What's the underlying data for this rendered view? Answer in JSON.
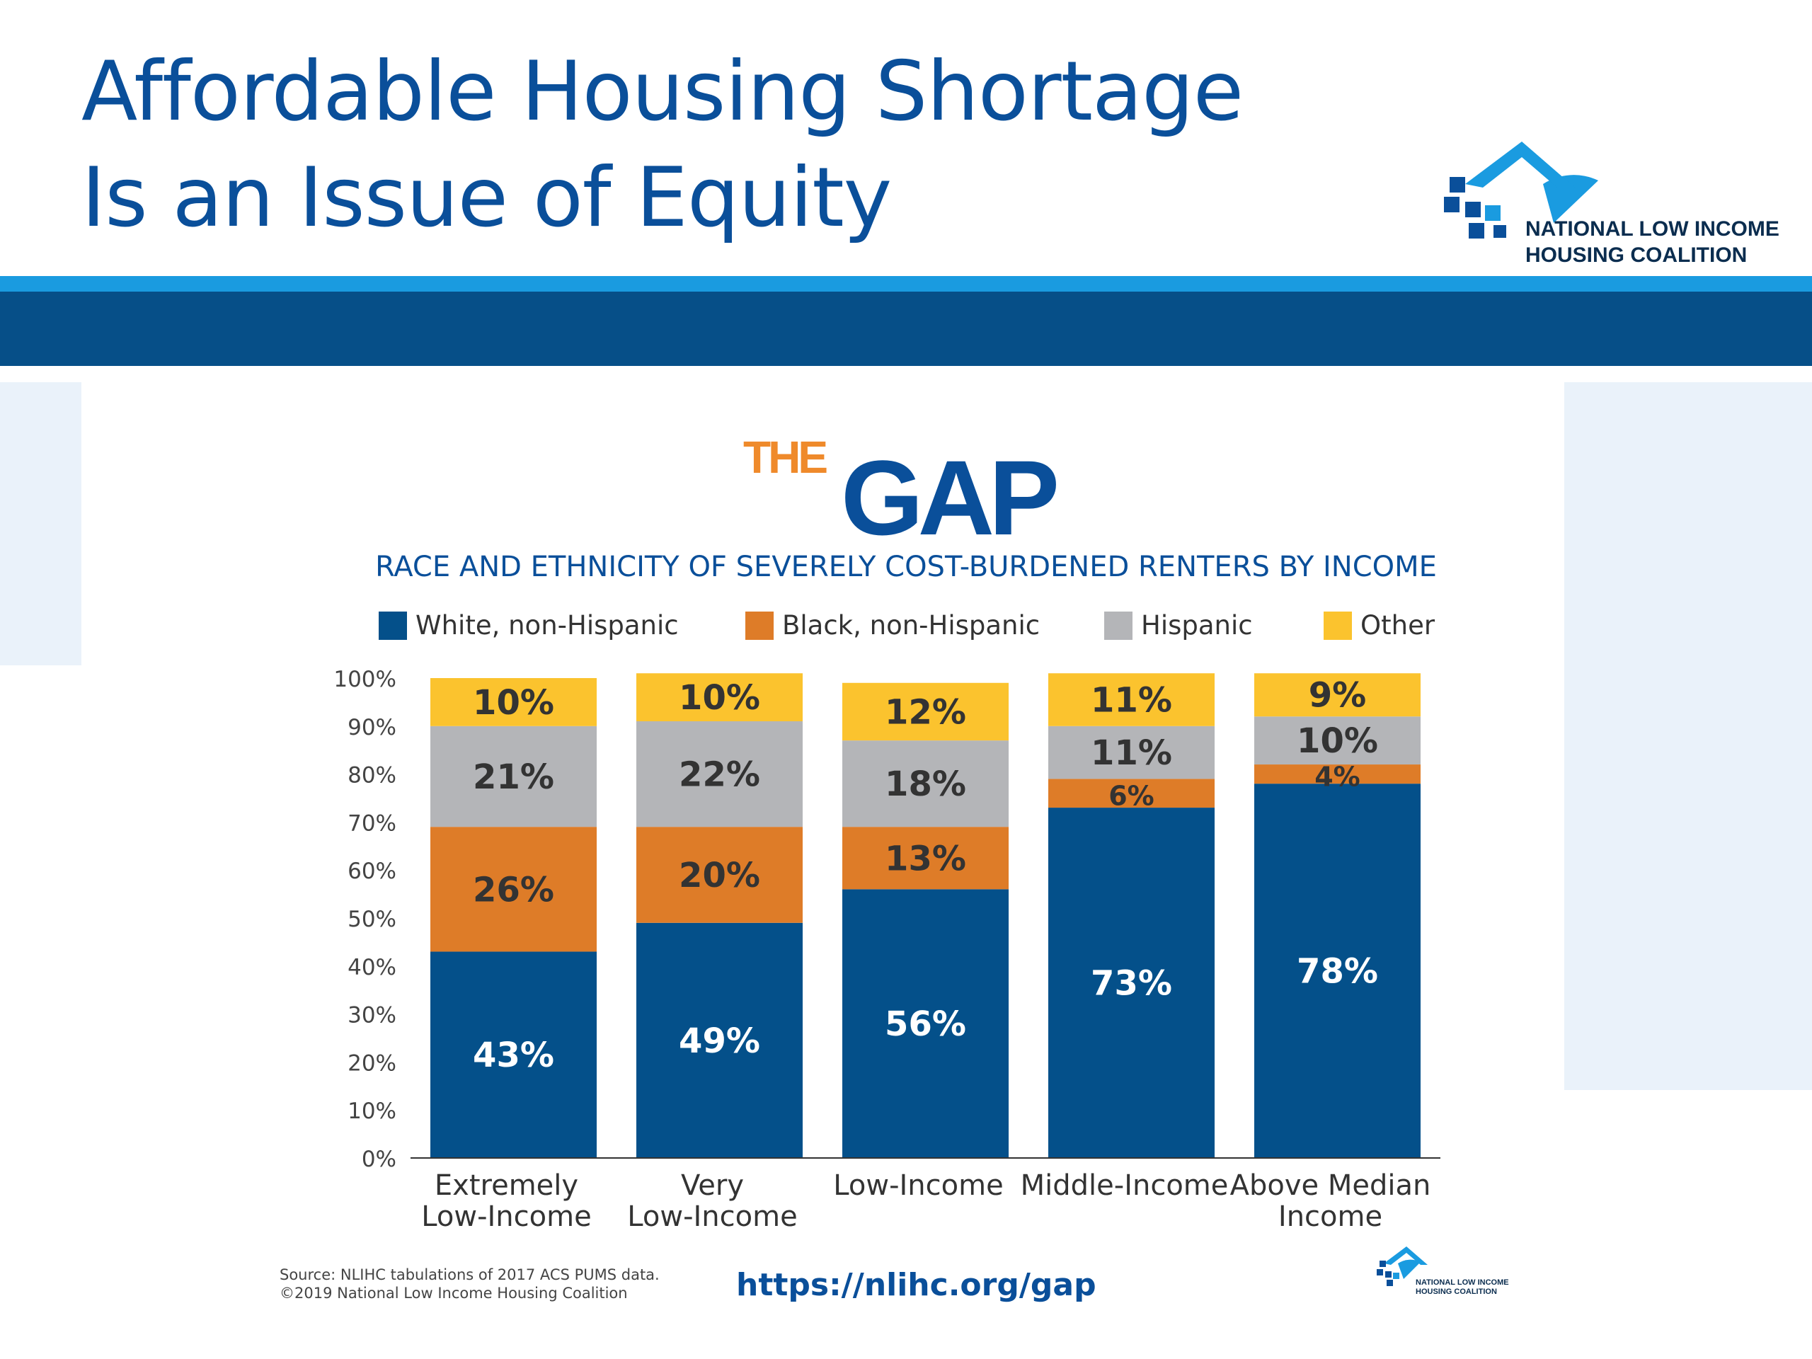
{
  "slide": {
    "title_line1": "Affordable Housing Shortage",
    "title_line2": "Is an Issue of Equity"
  },
  "org_logo": {
    "line1": "NATIONAL LOW INCOME",
    "line2": "HOUSING COALITION"
  },
  "gap_logo": {
    "the": "THE",
    "gap": "GAP"
  },
  "footer": {
    "source_line1": "Source: NLIHC tabulations of 2017 ACS PUMS data.",
    "source_line2": "©2019 National Low Income Housing Coalition",
    "url": "https://nlihc.org/gap",
    "small_logo_line1": "NATIONAL LOW INCOME",
    "small_logo_line2": "HOUSING COALITION"
  },
  "colors": {
    "title": "#0a4f9a",
    "white_series": "#04508a",
    "black_series": "#de7c28",
    "hispanic_series": "#b4b5b8",
    "other_series": "#fbc32e",
    "orange_accent": "#ef8a2b"
  },
  "chart_data": {
    "type": "bar",
    "stacked": true,
    "title": "RACE AND ETHNICITY OF SEVERELY COST-BURDENED RENTERS BY INCOME",
    "categories": [
      [
        "Extremely",
        "Low-Income"
      ],
      [
        "Very",
        "Low-Income"
      ],
      [
        "Low-Income"
      ],
      [
        "Middle-Income"
      ],
      [
        "Above Median",
        "Income"
      ]
    ],
    "series": [
      {
        "name": "White, non-Hispanic",
        "color": "#04508a",
        "label_color": "#ffffff",
        "values": [
          43,
          49,
          56,
          73,
          78
        ]
      },
      {
        "name": "Black, non-Hispanic",
        "color": "#de7c28",
        "label_color": "#333333",
        "values": [
          26,
          20,
          13,
          6,
          4
        ]
      },
      {
        "name": "Hispanic",
        "color": "#b4b5b8",
        "label_color": "#333333",
        "values": [
          21,
          22,
          18,
          11,
          10
        ]
      },
      {
        "name": "Other",
        "color": "#fbc32e",
        "label_color": "#333333",
        "values": [
          10,
          10,
          12,
          11,
          9
        ]
      }
    ],
    "yticks": [
      "0%",
      "10%",
      "20%",
      "30%",
      "40%",
      "50%",
      "60%",
      "70%",
      "80%",
      "90%",
      "100%"
    ],
    "ylim": [
      0,
      100
    ],
    "xlabel": "",
    "ylabel": "",
    "legend_position": "top"
  }
}
